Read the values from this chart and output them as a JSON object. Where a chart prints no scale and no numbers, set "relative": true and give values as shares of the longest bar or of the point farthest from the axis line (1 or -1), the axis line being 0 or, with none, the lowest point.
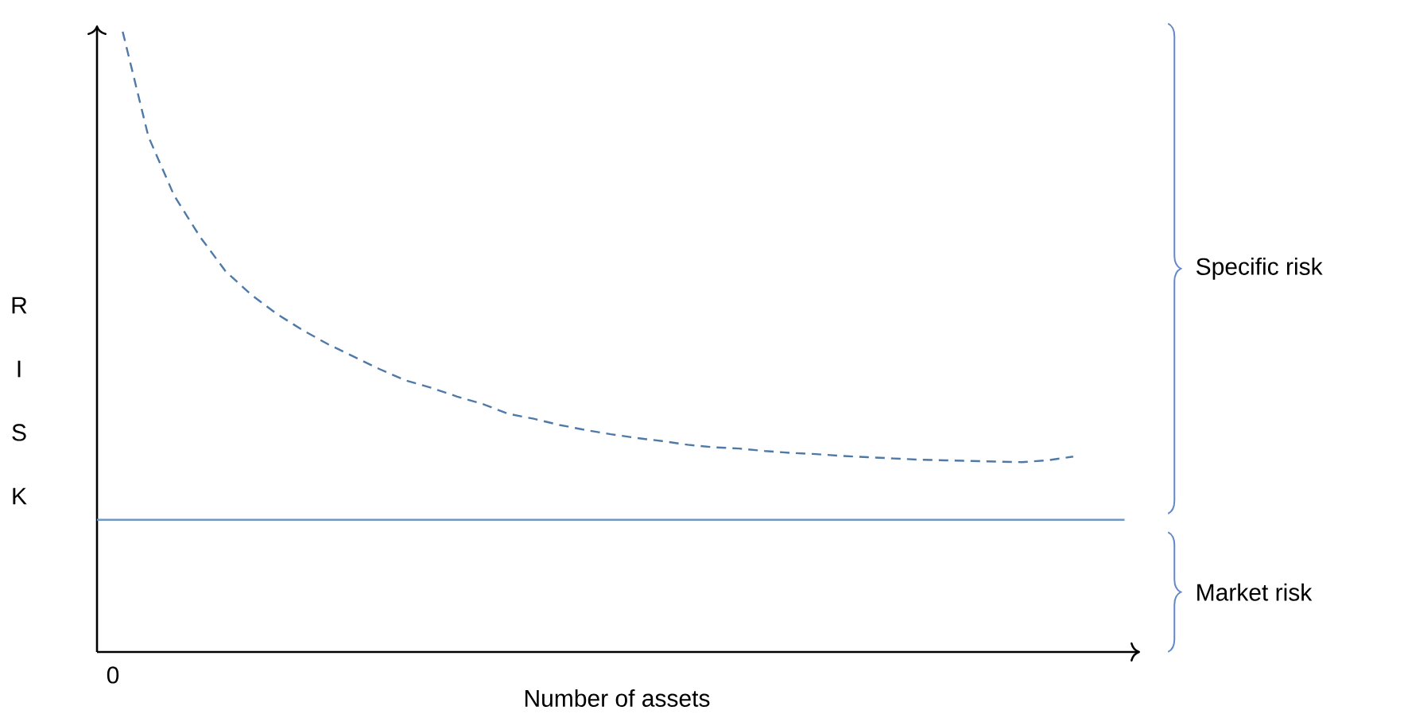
{
  "chart_data": {
    "type": "line",
    "relative": true,
    "xlabel": "Number of assets",
    "ylabel": "R I S K",
    "marker": "none",
    "categories": [
      null,
      null,
      null,
      null,
      null,
      null,
      null,
      null,
      null,
      null,
      null,
      null,
      null,
      null,
      null,
      null,
      null,
      null,
      null,
      null,
      null,
      null,
      null,
      null,
      null,
      null,
      null,
      null,
      null,
      null,
      null,
      null,
      null,
      null,
      null,
      null,
      null,
      null,
      null,
      null,
      null
    ],
    "series": [
      {
        "color": "#4f7aa8",
        "line_style": "dashed",
        "values": [
          null,
          1.0,
          0.831,
          0.736,
          0.67,
          0.614,
          0.576,
          0.545,
          0.519,
          0.496,
          0.476,
          0.456,
          0.438,
          0.426,
          0.412,
          0.4,
          0.384,
          0.376,
          0.366,
          0.358,
          0.351,
          0.345,
          0.34,
          0.334,
          0.33,
          0.328,
          0.324,
          0.321,
          0.319,
          0.316,
          0.314,
          0.312,
          0.31,
          0.309,
          0.308,
          0.307,
          0.306,
          0.309,
          0.315,
          null,
          null
        ]
      },
      {
        "color": "#6f97c4",
        "line_style": "solid",
        "values": [
          0.213,
          0.213,
          0.213,
          0.213,
          0.213,
          0.213,
          0.213,
          0.213,
          0.213,
          0.213,
          0.213,
          0.213,
          0.213,
          0.213,
          0.213,
          0.213,
          0.213,
          0.213,
          0.213,
          0.213,
          0.213,
          0.213,
          0.213,
          0.213,
          0.213,
          0.213,
          0.213,
          0.213,
          0.213,
          0.213,
          0.213,
          0.213,
          0.213,
          0.213,
          0.213,
          0.213,
          0.213,
          0.213,
          0.213,
          0.213,
          0.213
        ]
      }
    ],
    "annotations": [
      "Specific risk",
      "Market risk",
      "0"
    ]
  }
}
